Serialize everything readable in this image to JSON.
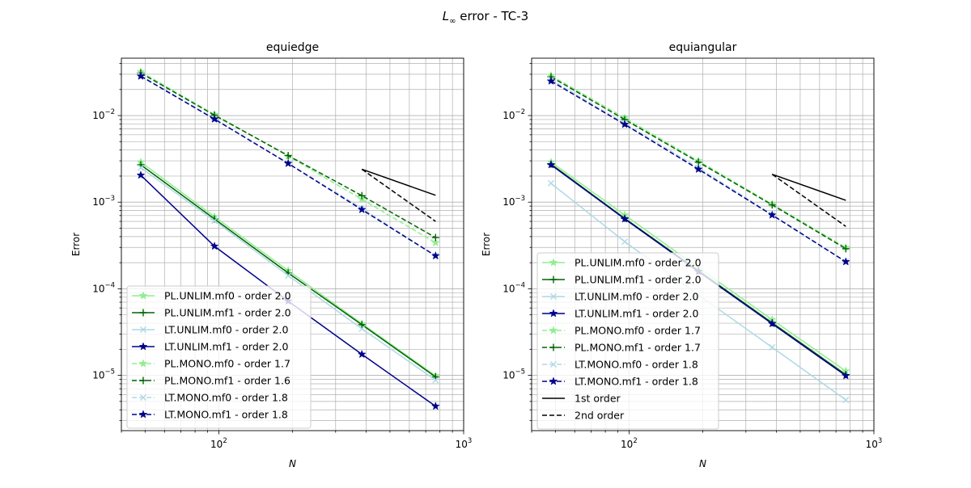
{
  "figure": {
    "suptitle_main": "L",
    "suptitle_sub": "∞",
    "suptitle_rest": " error - TC-3"
  },
  "colors": {
    "lightgreen": "#90ee90",
    "darkgreen": "#006400",
    "lightblue": "#add8e6",
    "navy": "#00008b",
    "ref": "#000000",
    "grid": "#b0b0b0"
  },
  "chart_data": [
    {
      "type": "line",
      "title": "equiedge",
      "xlabel": "N",
      "ylabel": "Error",
      "xscale": "log",
      "yscale": "log",
      "xlim": [
        40,
        1000
      ],
      "ylim": [
        2.3e-06,
        0.046
      ],
      "grid": true,
      "legend_position": "lower-left",
      "x": [
        48,
        96,
        192,
        384,
        768
      ],
      "series": [
        {
          "name": "PL.UNLIM.mf0 - order 2.0",
          "color": "lightgreen",
          "dash": "solid",
          "marker": "star",
          "values": [
            0.0029,
            0.00068,
            0.000162,
            3.95e-05,
            9.9e-06
          ]
        },
        {
          "name": "PL.UNLIM.mf1 - order 2.0",
          "color": "darkgreen",
          "dash": "solid",
          "marker": "plus",
          "values": [
            0.0027,
            0.00064,
            0.000152,
            3.85e-05,
            9.6e-06
          ]
        },
        {
          "name": "LT.UNLIM.mf0 - order 2.0",
          "color": "lightblue",
          "dash": "solid",
          "marker": "x",
          "values": [
            0.0025,
            0.00061,
            0.000142,
            3.45e-05,
            8.8e-06
          ]
        },
        {
          "name": "LT.UNLIM.mf1 - order 2.0",
          "color": "navy",
          "dash": "solid",
          "marker": "star",
          "values": [
            0.00205,
            0.00031,
            7.2e-05,
            1.75e-05,
            4.4e-06
          ]
        },
        {
          "name": "PL.MONO.mf0 - order 1.7",
          "color": "lightgreen",
          "dash": "dashed",
          "marker": "star",
          "values": [
            0.032,
            0.0103,
            0.0034,
            0.00108,
            0.00034
          ]
        },
        {
          "name": "PL.MONO.mf1 - order 1.6",
          "color": "darkgreen",
          "dash": "dashed",
          "marker": "plus",
          "values": [
            0.031,
            0.0101,
            0.00345,
            0.00119,
            0.00039
          ]
        },
        {
          "name": "LT.MONO.mf0 - order 1.8",
          "color": "lightblue",
          "dash": "dashed",
          "marker": "x",
          "values": [
            0.029,
            0.0092,
            0.0028,
            0.00085,
            0.00024
          ]
        },
        {
          "name": "LT.MONO.mf1 - order 1.8",
          "color": "navy",
          "dash": "dashed",
          "marker": "star",
          "values": [
            0.0285,
            0.0091,
            0.0028,
            0.00082,
            0.00024
          ]
        }
      ],
      "reference_lines": [
        {
          "name": "1st order",
          "color": "ref",
          "dash": "solid",
          "x": [
            384,
            768
          ],
          "values": [
            0.0024,
            0.0012
          ]
        },
        {
          "name": "2nd order",
          "color": "ref",
          "dash": "dashed",
          "x": [
            384,
            768
          ],
          "values": [
            0.0024,
            0.0006
          ]
        }
      ],
      "legend_series": [
        0,
        1,
        2,
        3,
        4,
        5,
        6,
        7
      ],
      "legend_refs": []
    },
    {
      "type": "line",
      "title": "equiangular",
      "xlabel": "N",
      "ylabel": "Error",
      "xscale": "log",
      "yscale": "log",
      "xlim": [
        40,
        1000
      ],
      "ylim": [
        2.3e-06,
        0.046
      ],
      "grid": true,
      "legend_position": "lower-left",
      "x": [
        48,
        96,
        192,
        384,
        768
      ],
      "series": [
        {
          "name": "PL.UNLIM.mf0 - order 2.0",
          "color": "lightgreen",
          "dash": "solid",
          "marker": "star",
          "values": [
            0.0029,
            0.00071,
            0.000175,
            4.4e-05,
            1.12e-05
          ]
        },
        {
          "name": "PL.UNLIM.mf1 - order 2.0",
          "color": "darkgreen",
          "dash": "solid",
          "marker": "plus",
          "values": [
            0.00275,
            0.00065,
            0.000162,
            4.05e-05,
            1.02e-05
          ]
        },
        {
          "name": "LT.UNLIM.mf0 - order 2.0",
          "color": "lightblue",
          "dash": "solid",
          "marker": "x",
          "values": [
            0.00165,
            0.00035,
            8.5e-05,
            2.11e-05,
            5.2e-06
          ]
        },
        {
          "name": "LT.UNLIM.mf1 - order 2.0",
          "color": "navy",
          "dash": "solid",
          "marker": "star",
          "values": [
            0.0027,
            0.00064,
            0.000158,
            3.95e-05,
            9.9e-06
          ]
        },
        {
          "name": "PL.MONO.mf0 - order 1.7",
          "color": "lightgreen",
          "dash": "dashed",
          "marker": "star",
          "values": [
            0.029,
            0.0094,
            0.003,
            0.00095,
            0.0003
          ]
        },
        {
          "name": "PL.MONO.mf1 - order 1.7",
          "color": "darkgreen",
          "dash": "dashed",
          "marker": "plus",
          "values": [
            0.028,
            0.009,
            0.0029,
            0.00093,
            0.00029
          ]
        },
        {
          "name": "LT.MONO.mf0 - order 1.8",
          "color": "lightblue",
          "dash": "dashed",
          "marker": "x",
          "values": [
            0.026,
            0.0081,
            0.0025,
            0.00072,
            0.000205
          ]
        },
        {
          "name": "LT.MONO.mf1 - order 1.8",
          "color": "navy",
          "dash": "dashed",
          "marker": "star",
          "values": [
            0.025,
            0.0079,
            0.0024,
            0.00071,
            0.000205
          ]
        }
      ],
      "reference_lines": [
        {
          "name": "1st order",
          "color": "ref",
          "dash": "solid",
          "x": [
            384,
            768
          ],
          "values": [
            0.0021,
            0.00105
          ]
        },
        {
          "name": "2nd order",
          "color": "ref",
          "dash": "dashed",
          "x": [
            384,
            768
          ],
          "values": [
            0.0021,
            0.000525
          ]
        }
      ],
      "legend_series": [
        0,
        1,
        2,
        3,
        4,
        5,
        6,
        7
      ],
      "legend_refs": [
        0,
        1
      ]
    }
  ]
}
